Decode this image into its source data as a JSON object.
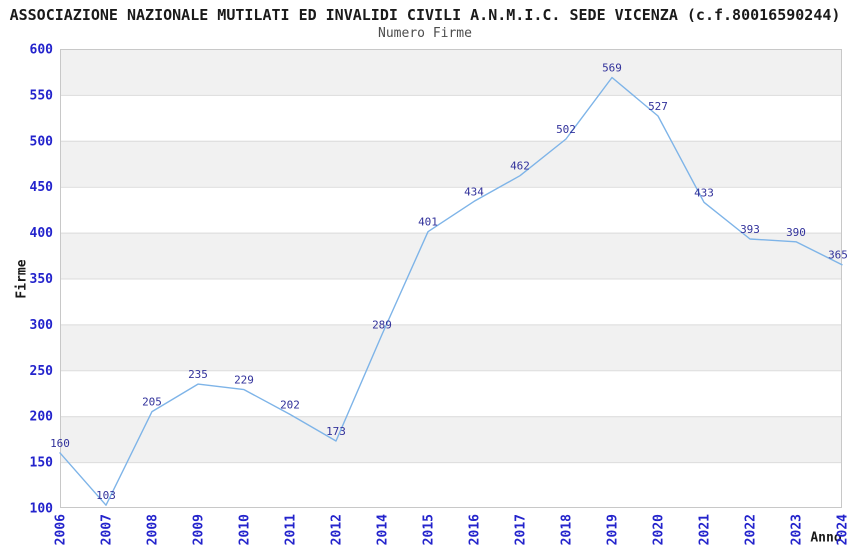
{
  "chart_data": {
    "type": "line",
    "title": "ASSOCIAZIONE NAZIONALE MUTILATI ED INVALIDI CIVILI A.N.M.I.C. SEDE VICENZA (c.f.80016590244)",
    "subtitle": "Numero Firme",
    "xlabel": "Anno",
    "ylabel": "Firme",
    "categories": [
      "2006",
      "2007",
      "2008",
      "2009",
      "2010",
      "2011",
      "2012",
      "2014",
      "2015",
      "2016",
      "2017",
      "2018",
      "2019",
      "2020",
      "2021",
      "2022",
      "2023",
      "2024"
    ],
    "values": [
      160,
      103,
      205,
      235,
      229,
      202,
      173,
      289,
      401,
      434,
      462,
      502,
      569,
      527,
      433,
      393,
      390,
      365
    ],
    "ylim": [
      100,
      600
    ],
    "ytick_step": 50,
    "grid": "horizontal-bands",
    "legend": "none",
    "point_labels_visible": true,
    "colors": {
      "line": "#7EB4E8",
      "point_label": "#32329B",
      "tick_label": "#2323CC",
      "band": "#F1F1F1",
      "gridline": "#DBDBDB",
      "plot_border": "#C8C8C8",
      "title": "#1A1A1A",
      "subtitle": "#4D4D4D",
      "axis_title": "#1A1A1A",
      "background": "#FFFFFF"
    }
  }
}
